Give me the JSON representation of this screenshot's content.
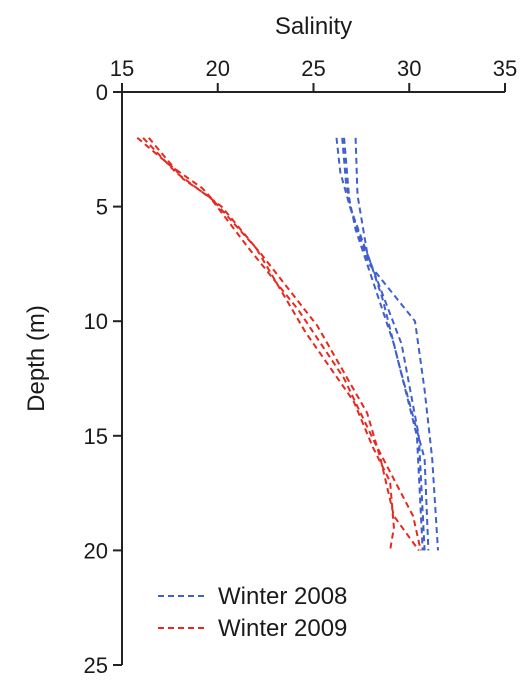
{
  "chart_data": {
    "type": "line",
    "title": "",
    "xlabel": "Salinity",
    "ylabel": "Depth (m)",
    "x_axis_position": "top",
    "y_inverted": true,
    "xlim": [
      15,
      35
    ],
    "ylim": [
      0,
      25
    ],
    "x_ticks": [
      "15",
      "20",
      "25",
      "30",
      "35"
    ],
    "y_ticks": [
      "0",
      "5",
      "10",
      "15",
      "20",
      "25"
    ],
    "grid": false,
    "legend_position": "bottom-left",
    "series": [
      {
        "name": "Winter 2008",
        "color": "#3f5fcf",
        "dash": "dashed",
        "points": [
          [
            26.2,
            2
          ],
          [
            26.4,
            3.5
          ],
          [
            26.9,
            5
          ],
          [
            28.0,
            7.5
          ],
          [
            29.6,
            11
          ],
          [
            30.5,
            15
          ],
          [
            30.8,
            20
          ]
        ]
      },
      {
        "name": "",
        "color": "#3f5fcf",
        "dash": "dashed",
        "points": [
          [
            26.5,
            2
          ],
          [
            26.7,
            4
          ],
          [
            27.2,
            6
          ],
          [
            28.4,
            9
          ],
          [
            29.2,
            11
          ],
          [
            30.4,
            15
          ],
          [
            30.7,
            20
          ]
        ]
      },
      {
        "name": "",
        "color": "#3f5fcf",
        "dash": "dashed",
        "points": [
          [
            27.2,
            2
          ],
          [
            27.3,
            4.5
          ],
          [
            27.8,
            7
          ],
          [
            28.6,
            9
          ],
          [
            29.5,
            12
          ],
          [
            30.8,
            16
          ],
          [
            31.0,
            20
          ]
        ]
      },
      {
        "name": "",
        "color": "#3f5fcf",
        "dash": "dashed",
        "points": [
          [
            26.6,
            2
          ],
          [
            26.9,
            5
          ],
          [
            27.9,
            7.5
          ],
          [
            30.3,
            10
          ],
          [
            30.8,
            13
          ],
          [
            31.2,
            16
          ],
          [
            31.5,
            20
          ]
        ]
      },
      {
        "name": "Winter 2009",
        "color": "#e8281e",
        "dash": "dashed",
        "points": [
          [
            15.8,
            2
          ],
          [
            17.5,
            3.2
          ],
          [
            19.2,
            4.2
          ],
          [
            22.2,
            7
          ],
          [
            25.2,
            10.2
          ],
          [
            27.8,
            14
          ],
          [
            28.5,
            16
          ],
          [
            29.2,
            18.5
          ],
          [
            30.5,
            20
          ]
        ]
      },
      {
        "name": "",
        "color": "#e8281e",
        "dash": "dashed",
        "points": [
          [
            16.1,
            2
          ],
          [
            17.8,
            3.5
          ],
          [
            20.2,
            5
          ],
          [
            22.0,
            6.8
          ],
          [
            24.6,
            10.5
          ],
          [
            27.1,
            13.5
          ],
          [
            28.1,
            15.5
          ],
          [
            29.0,
            17
          ],
          [
            29.2,
            19
          ],
          [
            29.0,
            20
          ]
        ]
      },
      {
        "name": "",
        "color": "#e8281e",
        "dash": "dashed",
        "points": [
          [
            16.4,
            2
          ],
          [
            18.2,
            3.8
          ],
          [
            19.6,
            4.6
          ],
          [
            21.6,
            6.8
          ],
          [
            24.2,
            9.5
          ],
          [
            26.6,
            12.5
          ],
          [
            28.2,
            15.3
          ],
          [
            30.2,
            18.5
          ],
          [
            30.6,
            20
          ]
        ]
      }
    ]
  }
}
